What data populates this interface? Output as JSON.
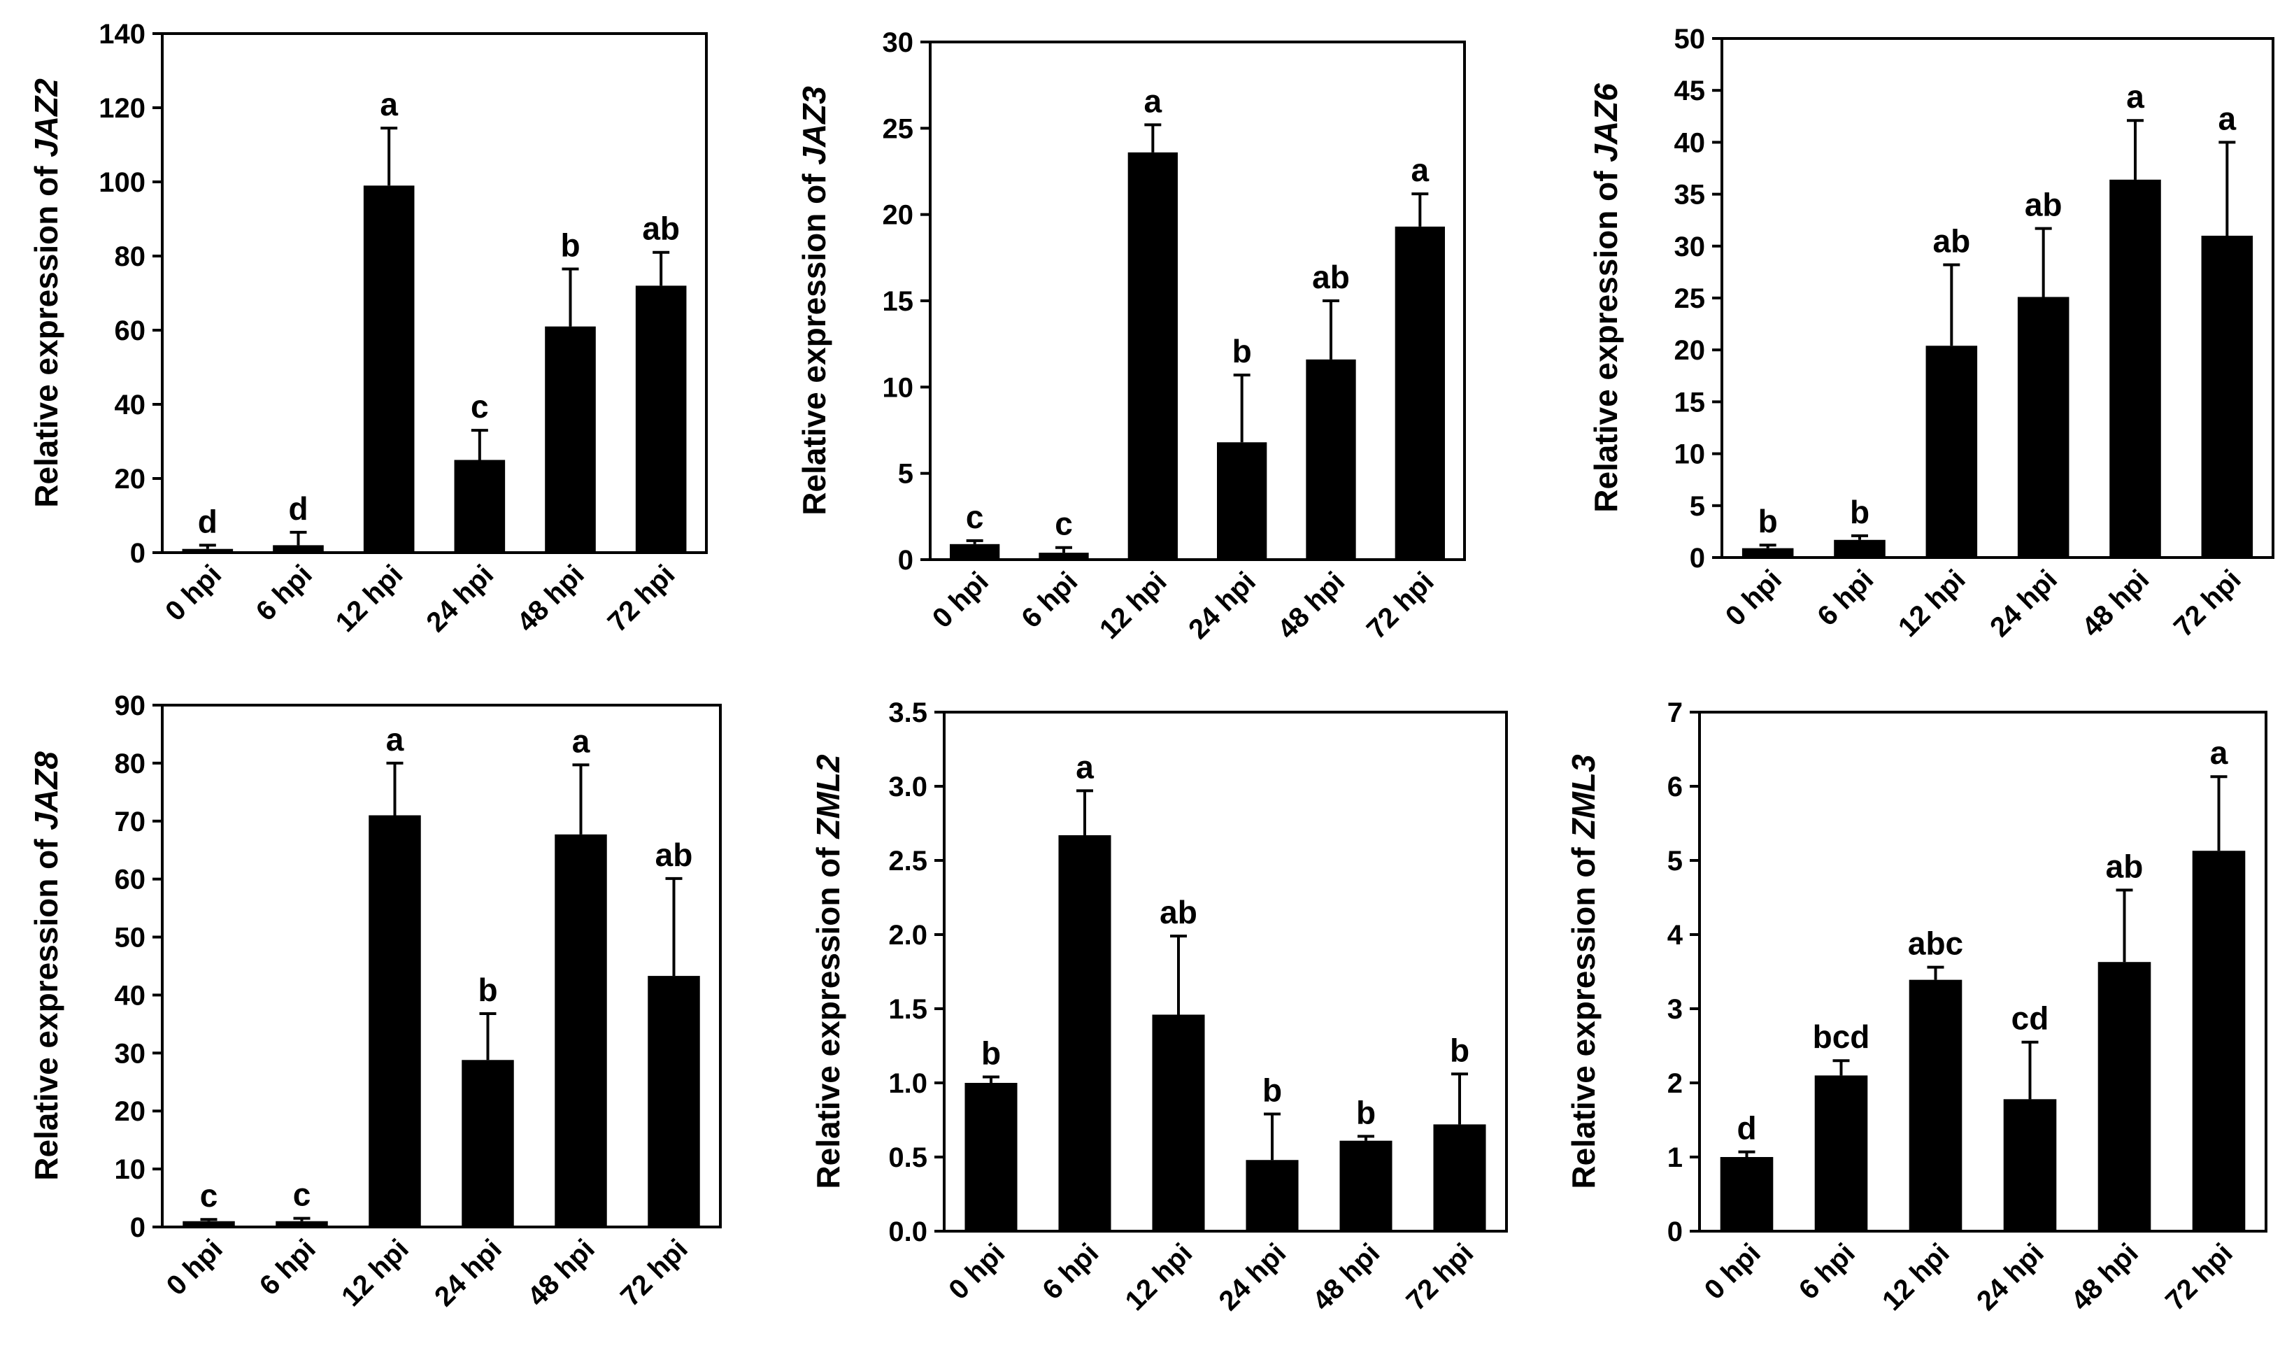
{
  "chart_data": [
    {
      "type": "bar",
      "ylabel_prefix": "Relative expression of ",
      "gene": "JAZ2",
      "categories": [
        "0 hpi",
        "6 hpi",
        "12 hpi",
        "24 hpi",
        "48 hpi",
        "72 hpi"
      ],
      "values": [
        1,
        2,
        99,
        25,
        61,
        72
      ],
      "errors": [
        1,
        3.5,
        15.5,
        8,
        15.5,
        9
      ],
      "letters": [
        "d",
        "d",
        "a",
        "c",
        "b",
        "ab"
      ],
      "ylim": [
        0,
        140
      ],
      "yticks": [
        0,
        20,
        40,
        60,
        80,
        100,
        120,
        140
      ],
      "tick_decimals": 0,
      "grid": false
    },
    {
      "type": "bar",
      "ylabel_prefix": "Relative expression of ",
      "gene": "JAZ3",
      "categories": [
        "0 hpi",
        "6 hpi",
        "12 hpi",
        "24 hpi",
        "48 hpi",
        "72 hpi"
      ],
      "values": [
        0.9,
        0.4,
        23.6,
        6.8,
        11.6,
        19.3
      ],
      "errors": [
        0.2,
        0.3,
        1.6,
        3.9,
        3.4,
        1.9
      ],
      "letters": [
        "c",
        "c",
        "a",
        "b",
        "ab",
        "a"
      ],
      "ylim": [
        0,
        30
      ],
      "yticks": [
        0,
        5,
        10,
        15,
        20,
        25,
        30
      ],
      "tick_decimals": 0,
      "grid": false
    },
    {
      "type": "bar",
      "ylabel_prefix": "Relative expression of ",
      "gene": "JAZ6",
      "categories": [
        "0 hpi",
        "6 hpi",
        "12 hpi",
        "24 hpi",
        "48 hpi",
        "72 hpi"
      ],
      "values": [
        0.9,
        1.7,
        20.4,
        25.1,
        36.4,
        31
      ],
      "errors": [
        0.3,
        0.4,
        7.8,
        6.6,
        5.7,
        9
      ],
      "letters": [
        "b",
        "b",
        "ab",
        "ab",
        "a",
        "a"
      ],
      "ylim": [
        0,
        50
      ],
      "yticks": [
        0,
        5,
        10,
        15,
        20,
        25,
        30,
        35,
        40,
        45,
        50
      ],
      "tick_decimals": 0,
      "grid": false
    },
    {
      "type": "bar",
      "ylabel_prefix": "Relative expression of ",
      "gene": "JAZ8",
      "categories": [
        "0 hpi",
        "6 hpi",
        "12 hpi",
        "24 hpi",
        "48 hpi",
        "72 hpi"
      ],
      "values": [
        1,
        1,
        71,
        28.8,
        67.7,
        43.3
      ],
      "errors": [
        0.3,
        0.5,
        9,
        8,
        12,
        16.8
      ],
      "letters": [
        "c",
        "c",
        "a",
        "b",
        "a",
        "ab"
      ],
      "ylim": [
        0,
        90
      ],
      "yticks": [
        0,
        10,
        20,
        30,
        40,
        50,
        60,
        70,
        80,
        90
      ],
      "tick_decimals": 0,
      "grid": false
    },
    {
      "type": "bar",
      "ylabel_prefix": "Relative expression of ",
      "gene": "ZML2",
      "categories": [
        "0 hpi",
        "6 hpi",
        "12 hpi",
        "24 hpi",
        "48 hpi",
        "72 hpi"
      ],
      "values": [
        1,
        2.67,
        1.46,
        0.48,
        0.61,
        0.72
      ],
      "errors": [
        0.04,
        0.3,
        0.53,
        0.31,
        0.03,
        0.34
      ],
      "letters": [
        "b",
        "a",
        "ab",
        "b",
        "b",
        "b"
      ],
      "ylim": [
        0,
        3.5
      ],
      "yticks": [
        0,
        0.5,
        1,
        1.5,
        2,
        2.5,
        3,
        3.5
      ],
      "tick_decimals": 1,
      "grid": false
    },
    {
      "type": "bar",
      "ylabel_prefix": "Relative expression of ",
      "gene": "ZML3",
      "categories": [
        "0 hpi",
        "6 hpi",
        "12 hpi",
        "24 hpi",
        "48 hpi",
        "72 hpi"
      ],
      "values": [
        1,
        2.1,
        3.39,
        1.78,
        3.63,
        5.13
      ],
      "errors": [
        0.07,
        0.2,
        0.17,
        0.77,
        0.97,
        1
      ],
      "letters": [
        "d",
        "bcd",
        "abc",
        "cd",
        "ab",
        "a"
      ],
      "ylim": [
        0,
        7
      ],
      "yticks": [
        0,
        1,
        2,
        3,
        4,
        5,
        6,
        7
      ],
      "tick_decimals": 0,
      "grid": false
    }
  ]
}
